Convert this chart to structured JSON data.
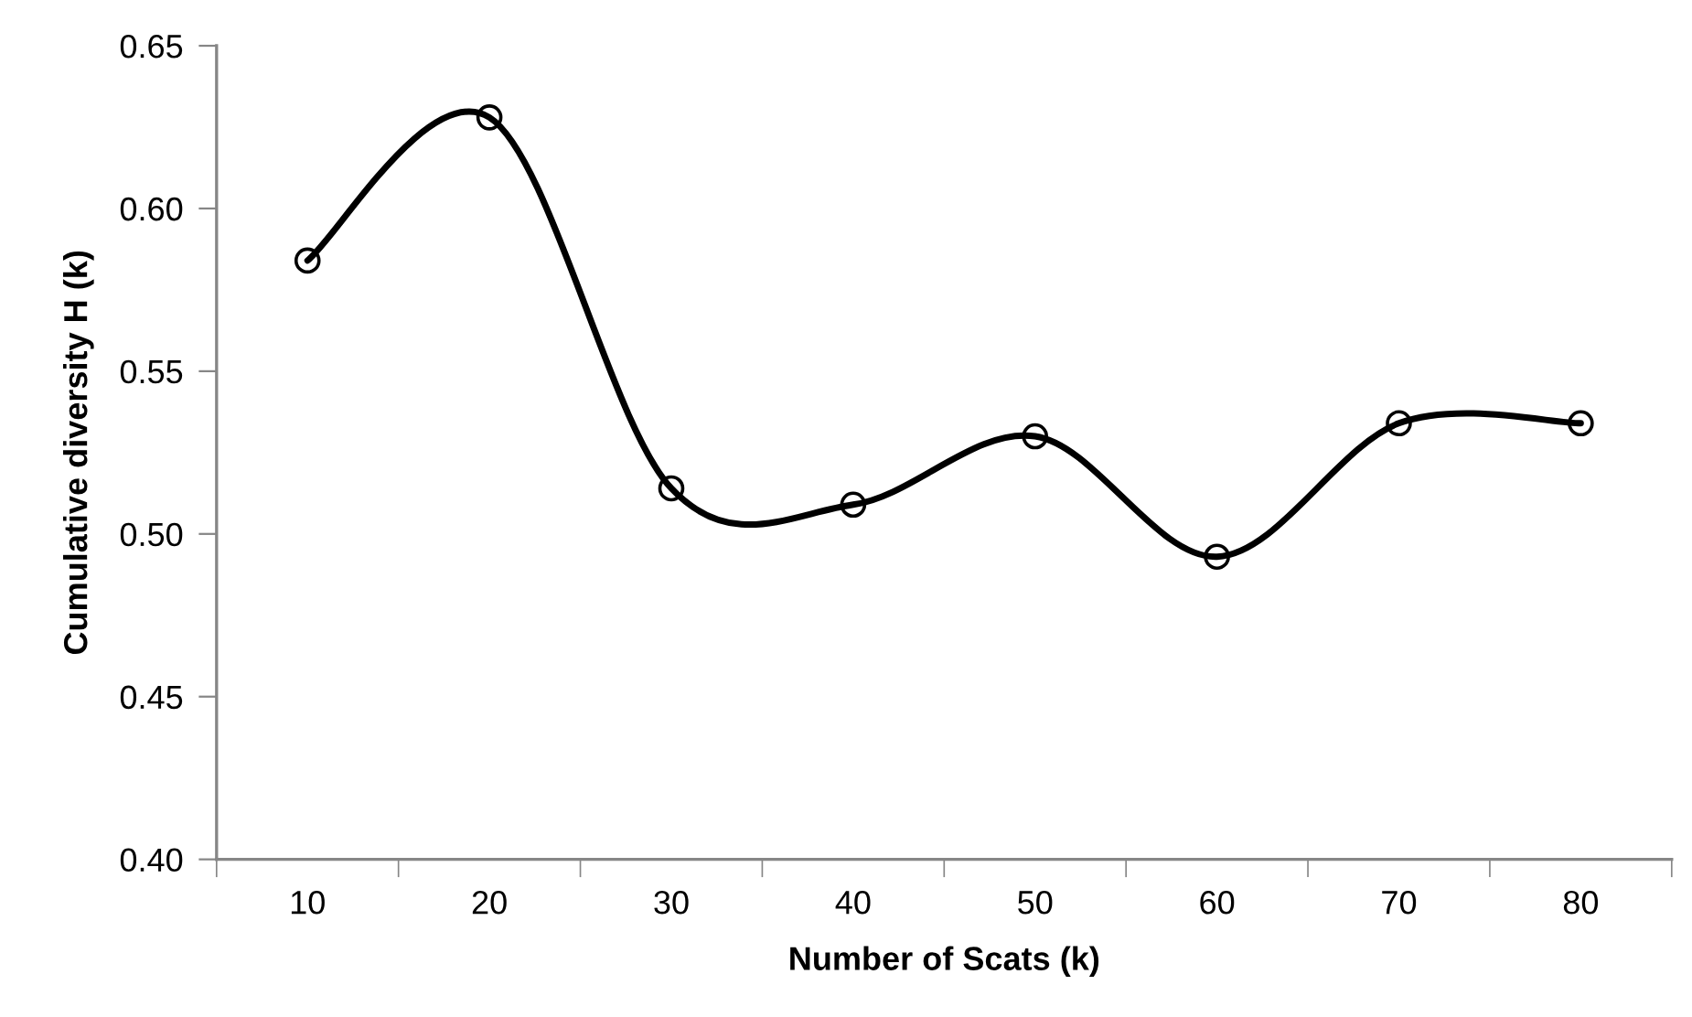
{
  "chart_data": {
    "type": "line",
    "xlabel": "Number of Scats (k)",
    "ylabel": "Cumulative diversity H (k)",
    "categories": [
      "10",
      "20",
      "30",
      "40",
      "50",
      "60",
      "70",
      "80"
    ],
    "series": [
      {
        "color": "#000000",
        "values": [
          0.584,
          0.628,
          0.514,
          0.509,
          0.53,
          0.493,
          0.534,
          0.534
        ]
      }
    ],
    "ylim": [
      0.4,
      0.65
    ],
    "yticks": [
      {
        "value": 0.4,
        "label": "0.40"
      },
      {
        "value": 0.45,
        "label": "0.45"
      },
      {
        "value": 0.5,
        "label": "0.50"
      },
      {
        "value": 0.55,
        "label": "0.55"
      },
      {
        "value": 0.6,
        "label": "0.60"
      },
      {
        "value": 0.65,
        "label": "0.65"
      }
    ],
    "marker": "circle",
    "line_style": "solid",
    "grid": false
  }
}
